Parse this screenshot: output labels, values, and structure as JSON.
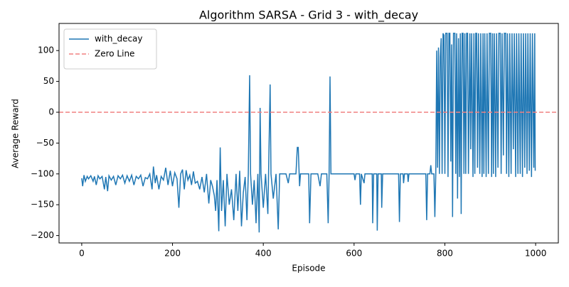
{
  "chart_data": {
    "type": "line",
    "title": "Algorithm SARSA - Grid 3 - with_decay",
    "x_label": "Episode",
    "y_label": "Average Reward",
    "xlim": [
      -50,
      1050
    ],
    "ylim": [
      -212,
      144
    ],
    "xticks": [
      0,
      200,
      400,
      600,
      800,
      1000
    ],
    "yticks": [
      {
        "value": -200,
        "label": "−200"
      },
      {
        "value": -150,
        "label": "−150"
      },
      {
        "value": -100,
        "label": "−100"
      },
      {
        "value": -50,
        "label": "−50"
      },
      0,
      50,
      100
    ],
    "legend": "upper left",
    "hlines": [
      {
        "name": "Zero Line",
        "y": 0,
        "color": "#f08080"
      }
    ],
    "x": [
      0,
      2,
      5,
      8,
      12,
      15,
      20,
      25,
      28,
      32,
      36,
      40,
      45,
      50,
      53,
      57,
      60,
      65,
      70,
      75,
      80,
      85,
      90,
      95,
      100,
      105,
      110,
      115,
      120,
      125,
      130,
      135,
      140,
      145,
      150,
      155,
      158,
      162,
      165,
      170,
      175,
      180,
      185,
      190,
      195,
      200,
      205,
      210,
      214,
      218,
      222,
      226,
      230,
      234,
      238,
      242,
      246,
      250,
      255,
      260,
      265,
      270,
      275,
      280,
      284,
      288,
      292,
      295,
      298,
      302,
      305,
      308,
      312,
      316,
      320,
      325,
      330,
      335,
      340,
      344,
      348,
      352,
      356,
      360,
      364,
      367,
      370,
      372,
      376,
      380,
      384,
      388,
      391,
      393,
      395,
      400,
      405,
      410,
      415,
      417,
      422,
      428,
      433,
      436,
      450,
      455,
      458,
      472,
      475,
      477,
      480,
      482,
      500,
      502,
      505,
      520,
      525,
      528,
      540,
      543,
      545,
      547,
      549,
      600,
      602,
      604,
      612,
      614,
      616,
      622,
      624,
      640,
      641,
      643,
      650,
      651,
      653,
      660,
      661,
      663,
      698,
      700,
      702,
      708,
      709,
      711,
      718,
      719,
      721,
      758,
      760,
      762,
      767,
      769,
      771,
      776,
      778,
      780,
      782,
      784,
      786,
      788,
      790,
      792,
      794,
      796,
      798,
      800,
      802,
      805,
      807,
      809,
      811,
      813,
      815,
      817,
      819,
      822,
      824,
      826,
      828,
      830,
      832,
      834,
      836,
      838,
      840,
      842,
      844,
      846,
      848,
      850,
      852,
      855,
      857,
      859,
      862,
      864,
      866,
      868,
      870,
      872,
      874,
      877,
      879,
      882,
      884,
      886,
      888,
      891,
      893,
      896,
      898,
      901,
      903,
      905,
      907,
      909,
      912,
      914,
      917,
      919,
      922,
      924,
      926,
      929,
      931,
      934,
      936,
      938,
      941,
      943,
      946,
      948,
      951,
      953,
      956,
      958,
      961,
      963,
      966,
      968,
      971,
      973,
      976,
      978,
      981,
      983,
      986,
      988,
      991,
      993,
      996,
      998,
      999
    ],
    "series": [
      {
        "name": "with_decay",
        "color": "#1f77b4",
        "values": [
          -107,
          -120,
          -102,
          -112,
          -104,
          -108,
          -103,
          -112,
          -104,
          -118,
          -103,
          -108,
          -104,
          -125,
          -105,
          -128,
          -103,
          -110,
          -104,
          -118,
          -103,
          -108,
          -102,
          -115,
          -103,
          -112,
          -102,
          -118,
          -104,
          -108,
          -102,
          -120,
          -106,
          -108,
          -100,
          -125,
          -88,
          -115,
          -102,
          -125,
          -104,
          -110,
          -90,
          -118,
          -95,
          -120,
          -98,
          -108,
          -155,
          -100,
          -93,
          -125,
          -94,
          -110,
          -102,
          -118,
          -96,
          -115,
          -112,
          -125,
          -105,
          -130,
          -100,
          -148,
          -110,
          -120,
          -135,
          -160,
          -110,
          -193,
          -57,
          -160,
          -110,
          -185,
          -100,
          -150,
          -125,
          -175,
          -100,
          -160,
          -95,
          -185,
          -130,
          -105,
          -175,
          -100,
          60,
          -100,
          -150,
          -110,
          -180,
          -100,
          -195,
          7,
          -100,
          -155,
          -100,
          -165,
          45,
          -100,
          -140,
          -100,
          -190,
          -100,
          -100,
          -115,
          -100,
          -100,
          -57,
          -57,
          -120,
          -100,
          -100,
          -180,
          -100,
          -100,
          -120,
          -100,
          -100,
          -180,
          -100,
          58,
          -100,
          -100,
          -110,
          -100,
          -100,
          -150,
          -100,
          -115,
          -100,
          -100,
          -180,
          -100,
          -100,
          -192,
          -100,
          -100,
          -155,
          -100,
          -100,
          -178,
          -100,
          -100,
          -115,
          -100,
          -100,
          -113,
          -100,
          -100,
          -175,
          -100,
          -100,
          -86,
          -100,
          -100,
          -170,
          -100,
          100,
          -90,
          105,
          -100,
          90,
          120,
          -100,
          128,
          125,
          -100,
          128,
          128,
          -105,
          128,
          128,
          -80,
          110,
          -170,
          128,
          128,
          -100,
          128,
          -140,
          120,
          -105,
          128,
          -165,
          128,
          128,
          -100,
          128,
          -100,
          128,
          128,
          -100,
          128,
          -60,
          128,
          -105,
          128,
          -100,
          128,
          128,
          -90,
          128,
          -100,
          128,
          -105,
          128,
          -100,
          128,
          -105,
          128,
          -100,
          128,
          128,
          -105,
          128,
          -100,
          128,
          -105,
          128,
          -90,
          128,
          128,
          -100,
          128,
          -70,
          128,
          128,
          -100,
          128,
          -105,
          128,
          -100,
          128,
          -60,
          128,
          -105,
          128,
          -100,
          128,
          -100,
          128,
          -105,
          128,
          -90,
          128,
          -100,
          128,
          -95,
          128,
          -105,
          128,
          -90,
          128,
          -95
        ]
      }
    ]
  }
}
